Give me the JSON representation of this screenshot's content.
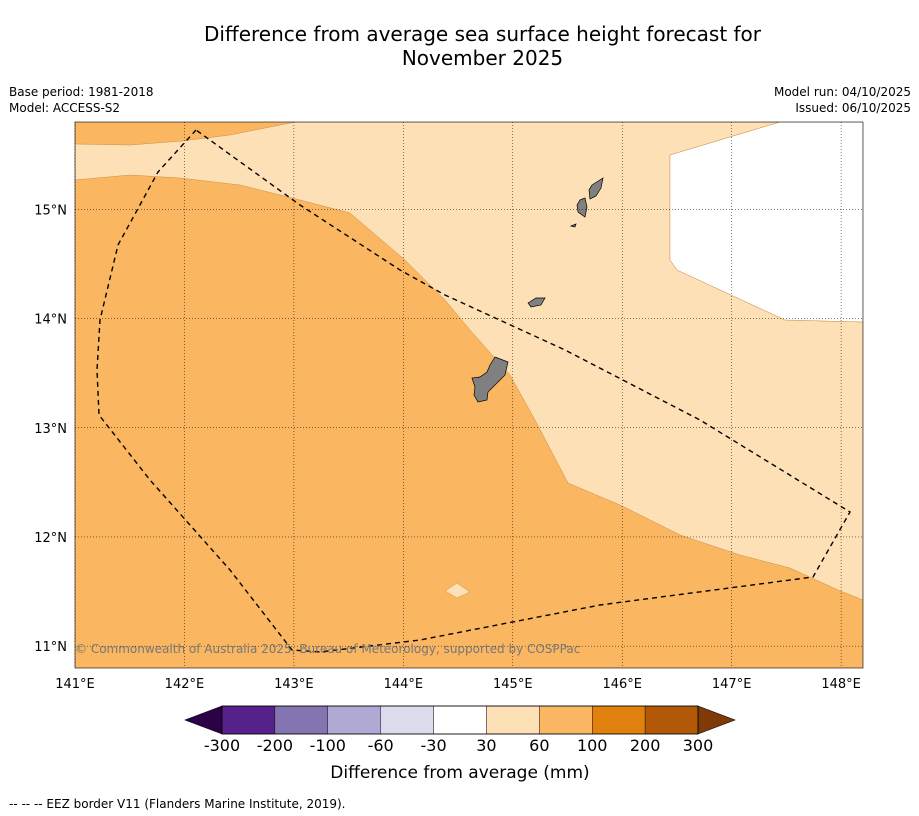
{
  "title": {
    "line1": "Difference from average sea surface height forecast for",
    "line2": "November 2025"
  },
  "meta_left": {
    "base_period": "Base period: 1981-2018",
    "model": "Model: ACCESS-S2"
  },
  "meta_right": {
    "model_run": "Model run: 04/10/2025",
    "issued": "Issued: 06/10/2025"
  },
  "map": {
    "extent": {
      "lon": [
        141.0,
        148.2
      ],
      "lat": [
        10.8,
        15.8
      ]
    },
    "lon_ticks": [
      {
        "value": 141,
        "label": "141°E"
      },
      {
        "value": 142,
        "label": "142°E"
      },
      {
        "value": 143,
        "label": "143°E"
      },
      {
        "value": 144,
        "label": "144°E"
      },
      {
        "value": 145,
        "label": "145°E"
      },
      {
        "value": 146,
        "label": "146°E"
      },
      {
        "value": 147,
        "label": "147°E"
      },
      {
        "value": 148,
        "label": "148°E"
      }
    ],
    "lat_ticks": [
      {
        "value": 11,
        "label": "11°N"
      },
      {
        "value": 12,
        "label": "12°N"
      },
      {
        "value": 13,
        "label": "13°N"
      },
      {
        "value": 14,
        "label": "14°N"
      },
      {
        "value": 15,
        "label": "15°N"
      }
    ],
    "colors": {
      "band_30_60": "#fde0b6",
      "band_60_100": "#fab660",
      "land": "#808080",
      "band_edge": "#c98f44"
    },
    "copyright": "© Commonwealth of Australia 2025, Bureau of Meteorology, supported by COSPPac"
  },
  "colorbar": {
    "tick_labels": [
      "-300",
      "-200",
      "-100",
      "-60",
      "-30",
      "30",
      "60",
      "100",
      "200",
      "300"
    ],
    "band_colors": [
      "#55218a",
      "#8474b2",
      "#b0a9d3",
      "#dcdbec",
      "#ffffff",
      "#fde0b6",
      "#fab660",
      "#e0800f",
      "#b25908"
    ],
    "under_color": "#2c0148",
    "over_color": "#7f3a0a",
    "label": "Difference from average (mm)"
  },
  "footer": {
    "legend_line": "--  --  -- EEZ border V11 (Flanders Marine Institute, 2019)."
  }
}
